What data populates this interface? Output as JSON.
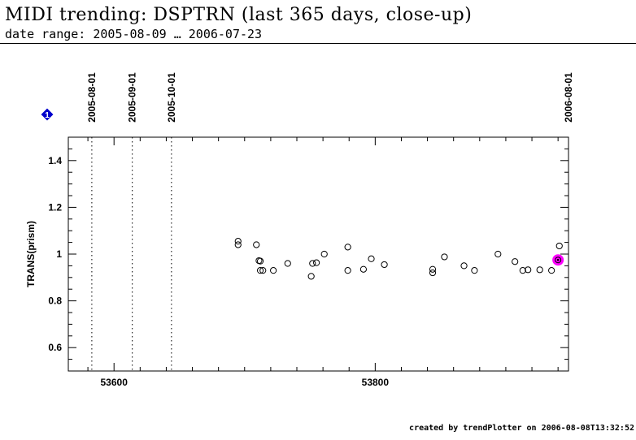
{
  "header": {
    "title": "MIDI trending: DSPTRN (last 365 days, close-up)",
    "subtitle": "date range: 2005-08-09 … 2006-07-23"
  },
  "footer": {
    "text": "created by trendPlotter on 2006-08-08T13:32:52"
  },
  "colors": {
    "marker_edge": "#000000",
    "highlight": "#ff00ff",
    "info_marker": "#0000cc"
  },
  "icons": {
    "info_marker": "blue-diamond-1-icon",
    "info_marker_label": "1"
  },
  "chart_data": {
    "type": "scatter",
    "title": "",
    "xlabel": "",
    "ylabel": "TRANS(prism)",
    "xlim": [
      53565,
      53948
    ],
    "ylim": [
      0.5,
      1.5
    ],
    "x_ticks": [
      53600,
      53800
    ],
    "y_ticks": [
      0.6,
      0.8,
      1,
      1.2,
      1.4
    ],
    "x_tick_labels": [
      "53600",
      "53800"
    ],
    "y_tick_labels": [
      "0.6",
      "0.8",
      "1",
      "1.2",
      "1.4"
    ],
    "grid": false,
    "marker_style": "open-circle",
    "date_markers": [
      {
        "label": "2005-08-01",
        "x": 53583
      },
      {
        "label": "2005-09-01",
        "x": 53614
      },
      {
        "label": "2005-10-01",
        "x": 53644
      },
      {
        "label": "2006-08-01",
        "x": 53948
      }
    ],
    "series": [
      {
        "points": [
          {
            "x": 53695,
            "y": 1.055
          },
          {
            "x": 53695,
            "y": 1.04
          },
          {
            "x": 53709,
            "y": 1.04
          },
          {
            "x": 53711,
            "y": 0.972
          },
          {
            "x": 53712,
            "y": 0.97
          },
          {
            "x": 53712,
            "y": 0.93
          },
          {
            "x": 53714,
            "y": 0.93
          },
          {
            "x": 53722,
            "y": 0.93
          },
          {
            "x": 53733,
            "y": 0.96
          },
          {
            "x": 53751,
            "y": 0.905
          },
          {
            "x": 53752,
            "y": 0.96
          },
          {
            "x": 53755,
            "y": 0.963
          },
          {
            "x": 53761,
            "y": 1
          },
          {
            "x": 53779,
            "y": 1.03
          },
          {
            "x": 53779,
            "y": 0.93
          },
          {
            "x": 53791,
            "y": 0.935
          },
          {
            "x": 53797,
            "y": 0.98
          },
          {
            "x": 53807,
            "y": 0.955
          },
          {
            "x": 53844,
            "y": 0.935
          },
          {
            "x": 53844,
            "y": 0.92
          },
          {
            "x": 53853,
            "y": 0.988
          },
          {
            "x": 53868,
            "y": 0.95
          },
          {
            "x": 53876,
            "y": 0.93
          },
          {
            "x": 53894,
            "y": 1
          },
          {
            "x": 53907,
            "y": 0.968
          },
          {
            "x": 53913,
            "y": 0.93
          },
          {
            "x": 53917,
            "y": 0.933
          },
          {
            "x": 53926,
            "y": 0.933
          },
          {
            "x": 53935,
            "y": 0.93
          },
          {
            "x": 53941,
            "y": 1.035
          }
        ]
      }
    ],
    "highlighted_point": {
      "x": 53940,
      "y": 0.975
    }
  }
}
